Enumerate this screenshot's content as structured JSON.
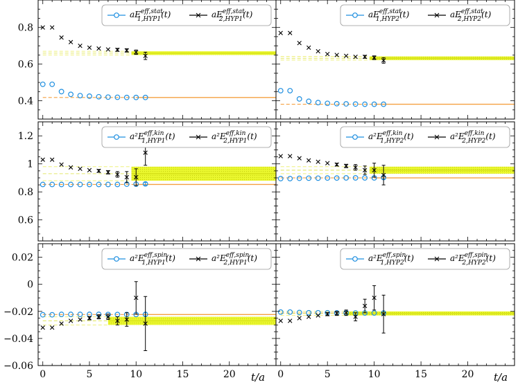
{
  "colors": {
    "blue": "#1f8fe0",
    "orange": "#f5a040",
    "band_fill": "#eaf72e",
    "band_dot": "#d7e21a",
    "black": "#000000"
  },
  "chart_data": {
    "type": "scatter",
    "title": "",
    "xlabel": "t/a",
    "xlim": [
      -0.5,
      25
    ],
    "xticks": [
      "0",
      "5",
      "10",
      "15",
      "20"
    ],
    "legend_placement": "top-right",
    "rows": [
      {
        "quantity": "stat",
        "ylim": [
          0.3,
          0.95
        ],
        "yticks": [
          "0.4",
          "0.6",
          "0.8"
        ],
        "panels": [
          {
            "legend": [
              "aE^{eff,stat}_{1,HYP1}(t)",
              "aE^{eff,stat}_{2,HYP1}(t)"
            ],
            "series": [
              {
                "name": "aE^{eff,stat}_{1,HYP1}(t)",
                "marker": "circle",
                "x": [
                  0,
                  1,
                  2,
                  3,
                  4,
                  5,
                  6,
                  7,
                  8,
                  9,
                  10,
                  11
                ],
                "y": [
                  0.49,
                  0.49,
                  0.45,
                  0.435,
                  0.428,
                  0.425,
                  0.422,
                  0.42,
                  0.419,
                  0.418,
                  0.418,
                  0.418
                ],
                "err": [
                  0.004,
                  0.004,
                  0.004,
                  0.004,
                  0.004,
                  0.004,
                  0.004,
                  0.004,
                  0.004,
                  0.004,
                  0.005,
                  0.006
                ]
              },
              {
                "name": "aE^{eff,stat}_{2,HYP1}(t)",
                "marker": "x",
                "x": [
                  0,
                  1,
                  2,
                  3,
                  4,
                  5,
                  6,
                  7,
                  8,
                  9,
                  10,
                  11
                ],
                "y": [
                  0.8,
                  0.8,
                  0.745,
                  0.72,
                  0.7,
                  0.69,
                  0.685,
                  0.68,
                  0.678,
                  0.675,
                  0.665,
                  0.645
                ],
                "err": [
                  0.005,
                  0.005,
                  0.005,
                  0.005,
                  0.005,
                  0.005,
                  0.006,
                  0.007,
                  0.008,
                  0.009,
                  0.012,
                  0.02
                ]
              }
            ],
            "fits": [
              {
                "series": 1,
                "value": 0.418,
                "error": 0.002,
                "range": [
                  0,
                  25
                ],
                "fit_from": 10
              },
              {
                "series": 2,
                "value": 0.66,
                "error": 0.01,
                "range": [
                  0,
                  25
                ],
                "fit_from": 9.5
              }
            ]
          },
          {
            "legend": [
              "aE^{eff,stat}_{1,HYP2}(t)",
              "aE^{eff,stat}_{2,HYP2}(t)"
            ],
            "series": [
              {
                "name": "aE^{eff,stat}_{1,HYP2}(t)",
                "marker": "circle",
                "x": [
                  0,
                  1,
                  2,
                  3,
                  4,
                  5,
                  6,
                  7,
                  8,
                  9,
                  10,
                  11
                ],
                "y": [
                  0.455,
                  0.455,
                  0.41,
                  0.397,
                  0.39,
                  0.386,
                  0.384,
                  0.383,
                  0.382,
                  0.381,
                  0.381,
                  0.381
                ],
                "err": [
                  0.004,
                  0.004,
                  0.004,
                  0.004,
                  0.004,
                  0.004,
                  0.004,
                  0.004,
                  0.004,
                  0.004,
                  0.005,
                  0.006
                ]
              },
              {
                "name": "aE^{eff,stat}_{2,HYP2}(t)",
                "marker": "x",
                "x": [
                  0,
                  1,
                  2,
                  3,
                  4,
                  5,
                  6,
                  7,
                  8,
                  9,
                  10,
                  11
                ],
                "y": [
                  0.77,
                  0.77,
                  0.715,
                  0.69,
                  0.67,
                  0.655,
                  0.65,
                  0.645,
                  0.64,
                  0.64,
                  0.635,
                  0.62
                ],
                "err": [
                  0.005,
                  0.005,
                  0.005,
                  0.005,
                  0.005,
                  0.005,
                  0.006,
                  0.006,
                  0.007,
                  0.008,
                  0.01,
                  0.015
                ]
              }
            ],
            "fits": [
              {
                "series": 1,
                "value": 0.381,
                "error": 0.002,
                "range": [
                  0,
                  25
                ],
                "fit_from": 10
              },
              {
                "series": 2,
                "value": 0.632,
                "error": 0.01,
                "range": [
                  0,
                  25
                ],
                "fit_from": 9.5
              }
            ]
          }
        ]
      },
      {
        "quantity": "kin",
        "ylim": [
          0.45,
          1.3
        ],
        "yticks": [
          "0.6",
          "0.8",
          "1",
          "1.2"
        ],
        "panels": [
          {
            "legend": [
              "a^2E^{eff,kin}_{1,HYP1}(t)",
              "a^2E^{eff,kin}_{2,HYP1}(t)"
            ],
            "series": [
              {
                "name": "a^2E^{eff,kin}_{1,HYP1}(t)",
                "marker": "circle",
                "x": [
                  0,
                  1,
                  2,
                  3,
                  4,
                  5,
                  6,
                  7,
                  8,
                  9,
                  10,
                  11
                ],
                "y": [
                  0.853,
                  0.853,
                  0.853,
                  0.853,
                  0.853,
                  0.853,
                  0.853,
                  0.853,
                  0.853,
                  0.855,
                  0.855,
                  0.857
                ],
                "err": [
                  0.004,
                  0.004,
                  0.004,
                  0.004,
                  0.004,
                  0.004,
                  0.004,
                  0.004,
                  0.005,
                  0.006,
                  0.008,
                  0.01
                ]
              },
              {
                "name": "a^2E^{eff,kin}_{2,HYP1}(t)",
                "marker": "x",
                "x": [
                  0,
                  1,
                  2,
                  3,
                  4,
                  5,
                  6,
                  7,
                  8,
                  9,
                  10,
                  11
                ],
                "y": [
                  1.03,
                  1.03,
                  0.995,
                  0.975,
                  0.965,
                  0.955,
                  0.95,
                  0.94,
                  0.925,
                  0.905,
                  0.905,
                  1.08
                ],
                "err": [
                  0.006,
                  0.006,
                  0.006,
                  0.007,
                  0.008,
                  0.009,
                  0.01,
                  0.012,
                  0.02,
                  0.04,
                  0.06,
                  0.09
                ]
              }
            ],
            "fits": [
              {
                "series": 1,
                "value": 0.853,
                "error": 0.003,
                "range": [
                  0,
                  25
                ],
                "fit_from": 10
              },
              {
                "series": 2,
                "value": 0.93,
                "error": 0.05,
                "range": [
                  0,
                  25
                ],
                "fit_from": 9.5
              }
            ]
          },
          {
            "legend": [
              "a^2E^{eff,kin}_{1,HYP2}(t)",
              "a^2E^{eff,kin}_{2,HYP2}(t)"
            ],
            "series": [
              {
                "name": "a^2E^{eff,kin}_{1,HYP2}(t)",
                "marker": "circle",
                "x": [
                  0,
                  1,
                  2,
                  3,
                  4,
                  5,
                  6,
                  7,
                  8,
                  9,
                  10,
                  11
                ],
                "y": [
                  0.895,
                  0.895,
                  0.897,
                  0.898,
                  0.898,
                  0.899,
                  0.899,
                  0.9,
                  0.9,
                  0.9,
                  0.9,
                  0.902
                ],
                "err": [
                  0.004,
                  0.004,
                  0.004,
                  0.004,
                  0.004,
                  0.004,
                  0.004,
                  0.004,
                  0.005,
                  0.006,
                  0.008,
                  0.01
                ]
              },
              {
                "name": "a^2E^{eff,kin}_{2,HYP2}(t)",
                "marker": "x",
                "x": [
                  0,
                  1,
                  2,
                  3,
                  4,
                  5,
                  6,
                  7,
                  8,
                  9,
                  10,
                  11
                ],
                "y": [
                  1.055,
                  1.055,
                  1.04,
                  1.025,
                  1.015,
                  1.005,
                  0.995,
                  0.985,
                  0.975,
                  0.955,
                  0.955,
                  0.92
                ],
                "err": [
                  0.006,
                  0.006,
                  0.006,
                  0.007,
                  0.008,
                  0.009,
                  0.01,
                  0.012,
                  0.02,
                  0.03,
                  0.05,
                  0.07
                ]
              }
            ],
            "fits": [
              {
                "series": 1,
                "value": 0.9,
                "error": 0.003,
                "range": [
                  0,
                  25
                ],
                "fit_from": 10
              },
              {
                "series": 2,
                "value": 0.955,
                "error": 0.025,
                "range": [
                  0,
                  25
                ],
                "fit_from": 9.5
              }
            ]
          }
        ]
      },
      {
        "quantity": "spin",
        "ylim": [
          -0.06,
          0.03
        ],
        "yticks": [
          "-0.06",
          "-0.04",
          "-0.02",
          "0",
          "0.02"
        ],
        "panels": [
          {
            "legend": [
              "a^2E^{eff,spin}_{1,HYP1}(t)",
              "a^2E^{eff,spin}_{2,HYP1}(t)"
            ],
            "series": [
              {
                "name": "a^2E^{eff,spin}_{1,HYP1}(t)",
                "marker": "circle",
                "x": [
                  0,
                  1,
                  2,
                  3,
                  4,
                  5,
                  6,
                  7,
                  8,
                  9,
                  10,
                  11
                ],
                "y": [
                  -0.0225,
                  -0.0225,
                  -0.0222,
                  -0.0222,
                  -0.0222,
                  -0.0222,
                  -0.0222,
                  -0.0223,
                  -0.0223,
                  -0.0223,
                  -0.0223,
                  -0.0222
                ],
                "err": [
                  0.0004,
                  0.0004,
                  0.0004,
                  0.0004,
                  0.0004,
                  0.0004,
                  0.0004,
                  0.0005,
                  0.0006,
                  0.0008,
                  0.001,
                  0.0012
                ]
              },
              {
                "name": "a^2E^{eff,spin}_{2,HYP1}(t)",
                "marker": "x",
                "x": [
                  0,
                  1,
                  2,
                  3,
                  4,
                  5,
                  6,
                  7,
                  8,
                  9,
                  10,
                  11
                ],
                "y": [
                  -0.032,
                  -0.032,
                  -0.029,
                  -0.027,
                  -0.026,
                  -0.025,
                  -0.024,
                  -0.024,
                  -0.027,
                  -0.026,
                  -0.01,
                  -0.029
                ],
                "err": [
                  0.0008,
                  0.0008,
                  0.0008,
                  0.0008,
                  0.001,
                  0.0012,
                  0.0015,
                  0.002,
                  0.003,
                  0.005,
                  0.012,
                  0.02
                ]
              }
            ],
            "fits": [
              {
                "series": 1,
                "value": -0.0223,
                "error": 0.0003,
                "range": [
                  0,
                  25
                ],
                "fit_from": 10
              },
              {
                "series": 2,
                "value": -0.027,
                "error": 0.003,
                "range": [
                  0,
                  25
                ],
                "fit_from": 7
              }
            ]
          },
          {
            "legend": [
              "a^2E^{eff,spin}_{1,HYP2}(t)",
              "a^2E^{eff,spin}_{2,HYP2}(t)"
            ],
            "series": [
              {
                "name": "a^2E^{eff,spin}_{1,HYP2}(t)",
                "marker": "circle",
                "x": [
                  0,
                  1,
                  2,
                  3,
                  4,
                  5,
                  6,
                  7,
                  8,
                  9,
                  10,
                  11
                ],
                "y": [
                  -0.0205,
                  -0.0205,
                  -0.0208,
                  -0.021,
                  -0.021,
                  -0.021,
                  -0.0211,
                  -0.0211,
                  -0.0212,
                  -0.0212,
                  -0.0212,
                  -0.0212
                ],
                "err": [
                  0.0004,
                  0.0004,
                  0.0004,
                  0.0004,
                  0.0004,
                  0.0004,
                  0.0004,
                  0.0005,
                  0.0006,
                  0.0008,
                  0.001,
                  0.0012
                ]
              },
              {
                "name": "a^2E^{eff,spin}_{2,HYP2}(t)",
                "marker": "x",
                "x": [
                  0,
                  1,
                  2,
                  3,
                  4,
                  5,
                  6,
                  7,
                  8,
                  9,
                  10,
                  11
                ],
                "y": [
                  -0.027,
                  -0.027,
                  -0.025,
                  -0.024,
                  -0.023,
                  -0.022,
                  -0.0215,
                  -0.021,
                  -0.024,
                  -0.016,
                  -0.01,
                  -0.022
                ],
                "err": [
                  0.0008,
                  0.0008,
                  0.0008,
                  0.0008,
                  0.001,
                  0.0012,
                  0.0015,
                  0.002,
                  0.003,
                  0.005,
                  0.009,
                  0.014
                ]
              }
            ],
            "fits": [
              {
                "series": 1,
                "value": -0.0212,
                "error": 0.0003,
                "range": [
                  0,
                  25
                ],
                "fit_from": 10
              },
              {
                "series": 2,
                "value": -0.0215,
                "error": 0.0015,
                "range": [
                  0,
                  25
                ],
                "fit_from": 7
              }
            ]
          }
        ]
      }
    ]
  }
}
